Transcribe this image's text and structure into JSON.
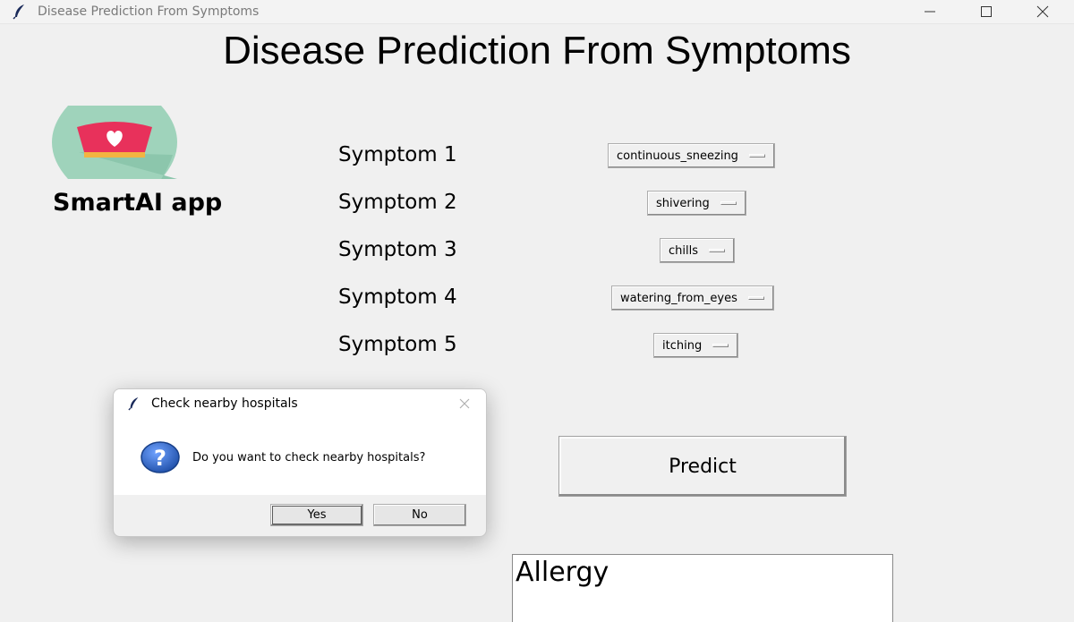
{
  "window": {
    "title": "Disease Prediction From Symptoms",
    "icon": "feather-icon"
  },
  "main": {
    "heading": "Disease Prediction From Symptoms",
    "brand": "SmartAI app",
    "logo_icon": "nurse-cap-heart-icon",
    "symptoms": [
      {
        "label": "Symptom 1",
        "value": "continuous_sneezing"
      },
      {
        "label": "Symptom 2",
        "value": "shivering"
      },
      {
        "label": "Symptom 3",
        "value": "chills"
      },
      {
        "label": "Symptom 4",
        "value": "watering_from_eyes"
      },
      {
        "label": "Symptom 5",
        "value": "itching"
      }
    ],
    "predict_label": "Predict",
    "result": "Allergy"
  },
  "dialog": {
    "title": "Check nearby hospitals",
    "message": "Do you want to check nearby hospitals?",
    "yes_label": "Yes",
    "no_label": "No",
    "icon": "question-icon"
  },
  "colors": {
    "window_bg": "#f0f0f0",
    "logo_bg": "#9fd3bb",
    "logo_cap": "#e8315b",
    "question_blue": "#1f4fa8"
  }
}
